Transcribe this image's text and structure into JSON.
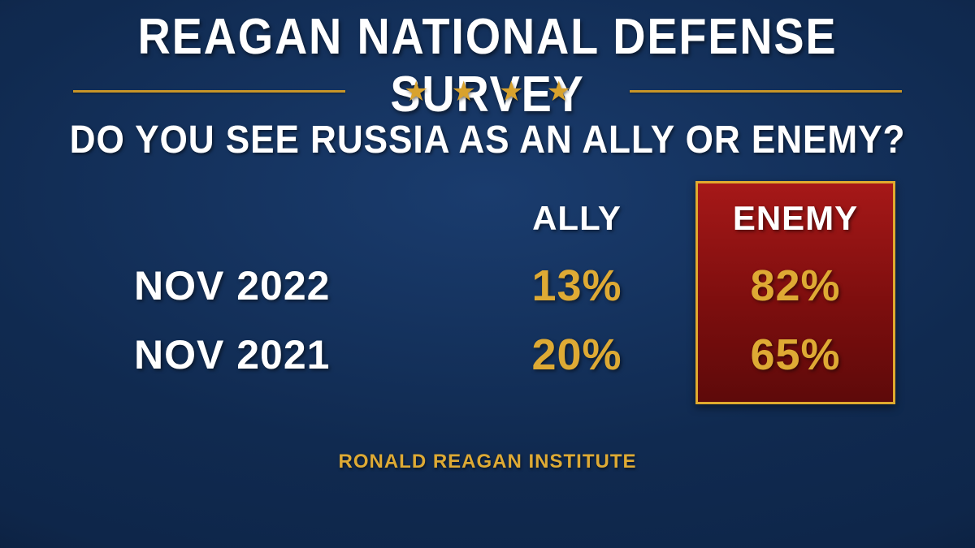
{
  "colors": {
    "white": "#ffffff",
    "gold": "#deaa34",
    "gold_dark": "#c89528",
    "star": "#d8a22e"
  },
  "title": {
    "text": "REAGAN NATIONAL DEFENSE SURVEY",
    "fontsize": 62,
    "color_key": "white"
  },
  "divider": {
    "line_color_key": "gold_dark",
    "star_color_key": "star",
    "star_count": 4,
    "star_fontsize": 34
  },
  "question": {
    "text": "DO YOU SEE RUSSIA AS AN ALLY OR ENEMY?",
    "fontsize": 48,
    "color_key": "white"
  },
  "headers": {
    "ally": "ALLY",
    "enemy": "ENEMY",
    "fontsize": 42,
    "color_key": "white"
  },
  "rows": [
    {
      "label": "NOV 2022",
      "ally": "13%",
      "enemy": "82%"
    },
    {
      "label": "NOV 2021",
      "ally": "20%",
      "enemy": "65%"
    }
  ],
  "row_label": {
    "fontsize": 50,
    "color_key": "white"
  },
  "cell": {
    "fontsize": 54,
    "color_key": "gold"
  },
  "source": {
    "text": "RONALD REAGAN INSTITUTE",
    "fontsize": 24,
    "color_key": "gold"
  }
}
